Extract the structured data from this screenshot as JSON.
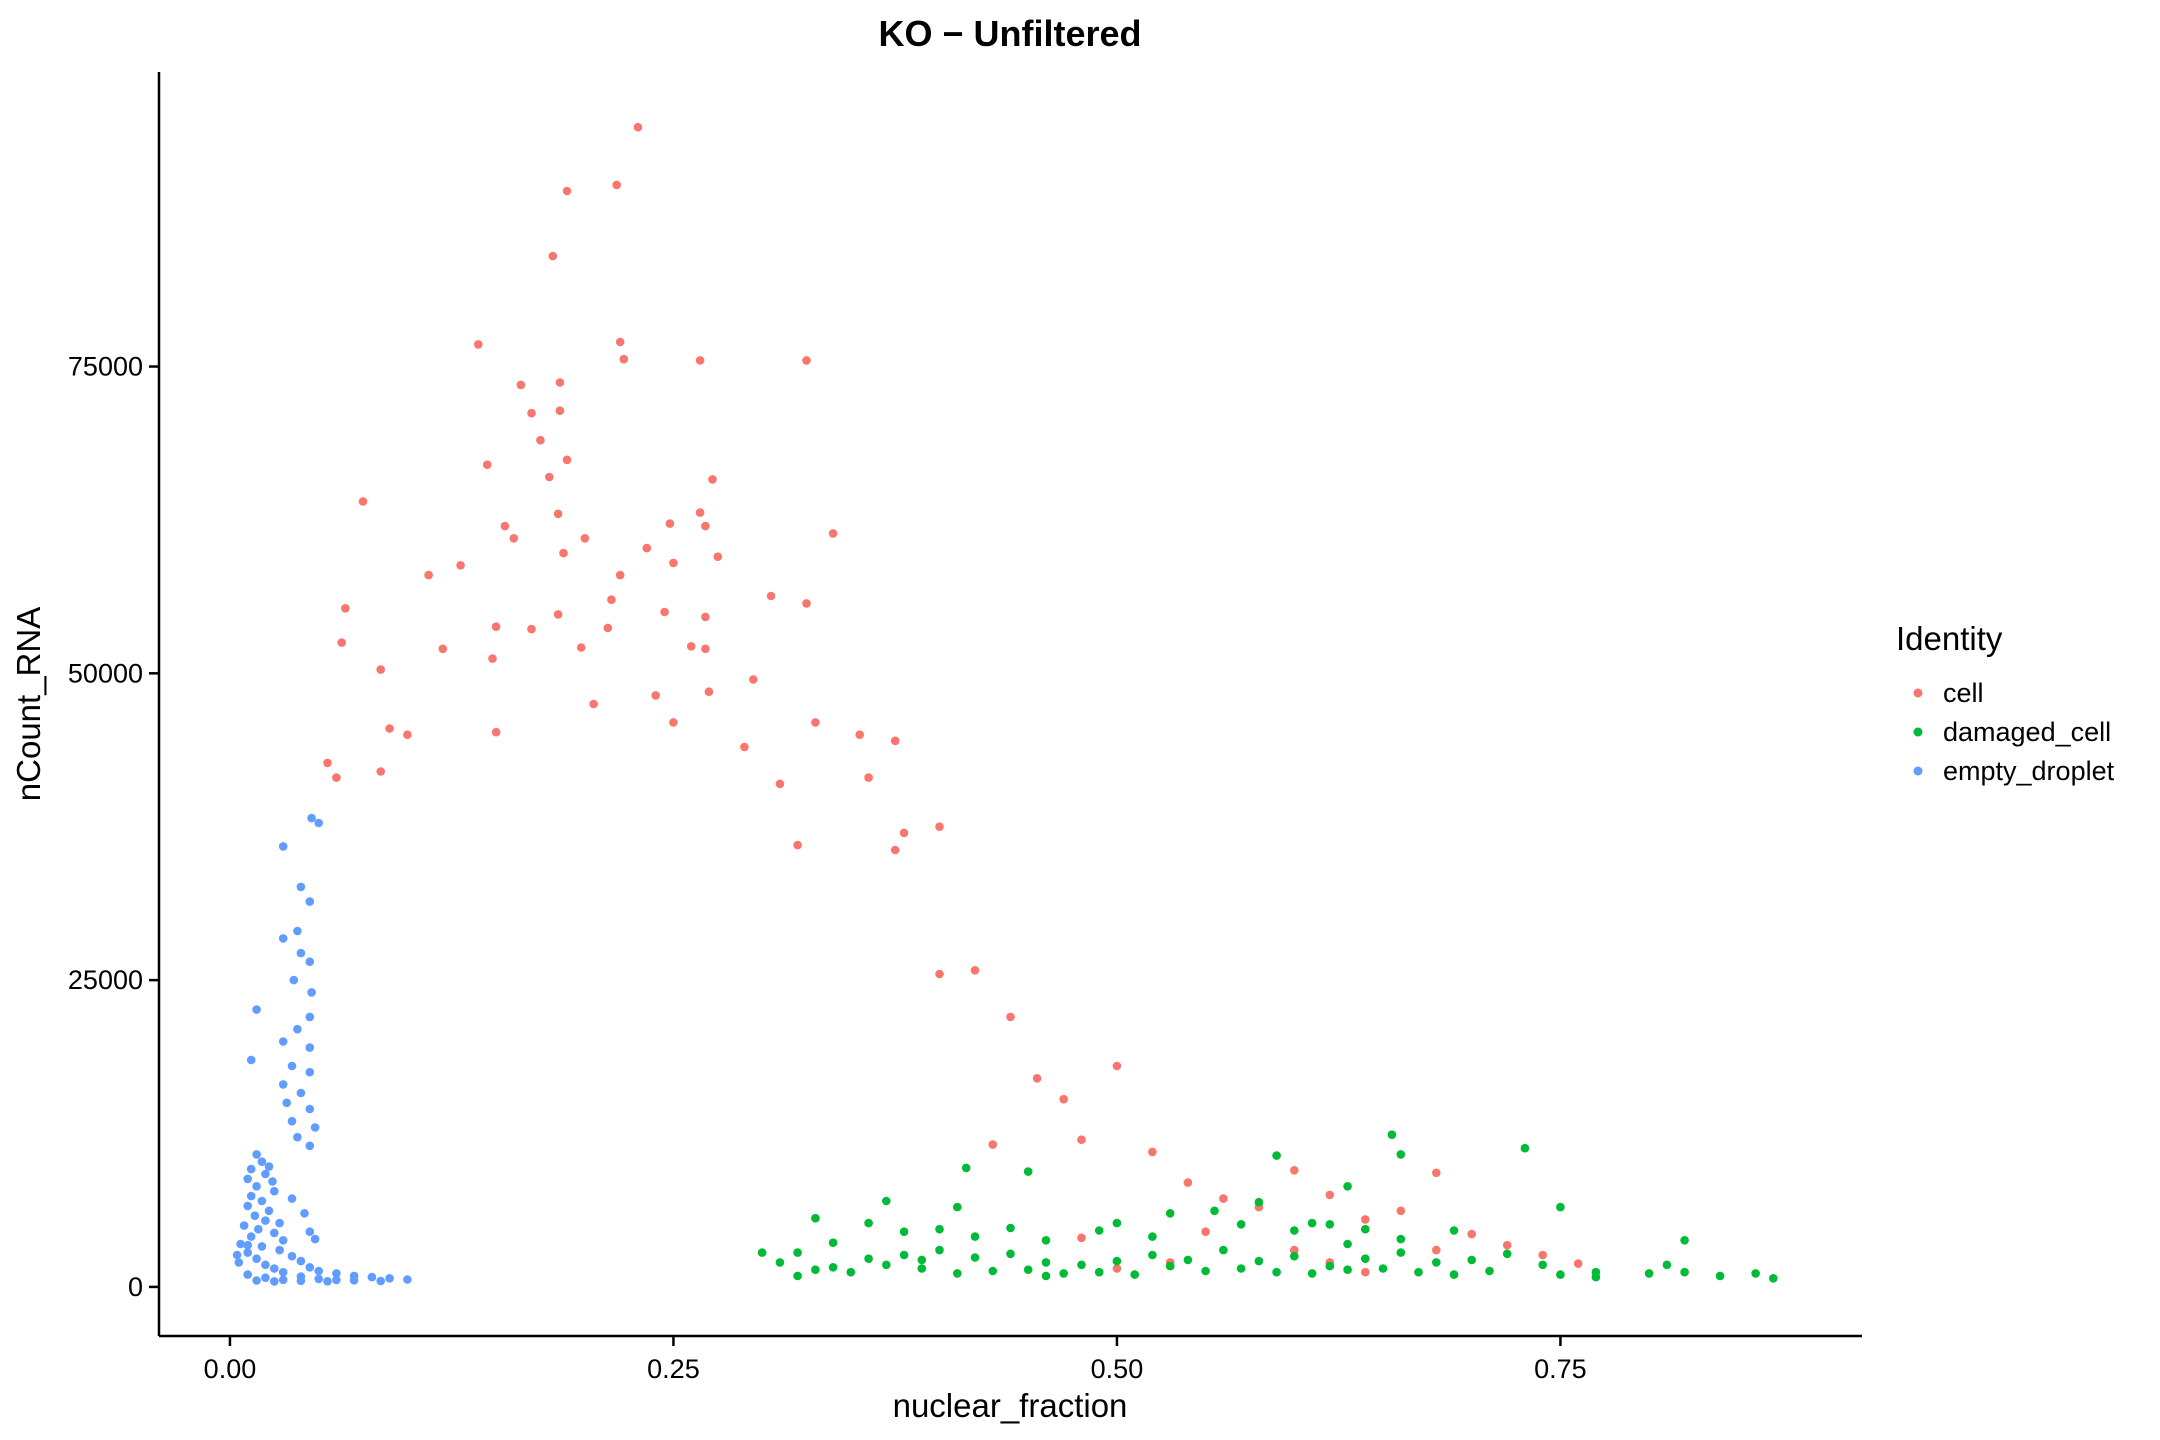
{
  "chart_data": {
    "type": "scatter",
    "title": "KO − Unfiltered",
    "xlabel": "nuclear_fraction",
    "ylabel": "nCount_RNA",
    "xlim": [
      -0.04,
      0.92
    ],
    "ylim": [
      -4000,
      99000
    ],
    "x_ticks": [
      0.0,
      0.25,
      0.5,
      0.75
    ],
    "x_tick_labels": [
      "0.00",
      "0.25",
      "0.50",
      "0.75"
    ],
    "y_ticks": [
      0,
      25000,
      50000,
      75000
    ],
    "y_tick_labels": [
      "0",
      "25000",
      "50000",
      "75000"
    ],
    "grid": false,
    "legend": {
      "title": "Identity",
      "placement": "right"
    },
    "series": [
      {
        "name": "cell",
        "color": "#F8766D",
        "points": [
          [
            0.23,
            94500
          ],
          [
            0.218,
            89800
          ],
          [
            0.19,
            89300
          ],
          [
            0.182,
            84000
          ],
          [
            0.14,
            76800
          ],
          [
            0.22,
            77000
          ],
          [
            0.222,
            75600
          ],
          [
            0.265,
            75500
          ],
          [
            0.325,
            75500
          ],
          [
            0.164,
            73500
          ],
          [
            0.186,
            73700
          ],
          [
            0.17,
            71200
          ],
          [
            0.186,
            71400
          ],
          [
            0.175,
            69000
          ],
          [
            0.19,
            67400
          ],
          [
            0.145,
            67000
          ],
          [
            0.18,
            66000
          ],
          [
            0.272,
            65800
          ],
          [
            0.075,
            64000
          ],
          [
            0.185,
            63000
          ],
          [
            0.265,
            63100
          ],
          [
            0.248,
            62200
          ],
          [
            0.34,
            61400
          ],
          [
            0.155,
            62000
          ],
          [
            0.16,
            61000
          ],
          [
            0.268,
            62000
          ],
          [
            0.2,
            61000
          ],
          [
            0.188,
            59800
          ],
          [
            0.235,
            60200
          ],
          [
            0.275,
            59500
          ],
          [
            0.13,
            58800
          ],
          [
            0.112,
            58000
          ],
          [
            0.25,
            59000
          ],
          [
            0.22,
            58000
          ],
          [
            0.305,
            56300
          ],
          [
            0.215,
            56000
          ],
          [
            0.065,
            55300
          ],
          [
            0.325,
            55700
          ],
          [
            0.245,
            55000
          ],
          [
            0.185,
            54800
          ],
          [
            0.15,
            53800
          ],
          [
            0.17,
            53600
          ],
          [
            0.268,
            54600
          ],
          [
            0.12,
            52000
          ],
          [
            0.063,
            52500
          ],
          [
            0.26,
            52200
          ],
          [
            0.268,
            52000
          ],
          [
            0.085,
            50300
          ],
          [
            0.295,
            49500
          ],
          [
            0.148,
            51200
          ],
          [
            0.198,
            52100
          ],
          [
            0.213,
            53700
          ],
          [
            0.27,
            48500
          ],
          [
            0.24,
            48200
          ],
          [
            0.205,
            47500
          ],
          [
            0.355,
            45000
          ],
          [
            0.375,
            44500
          ],
          [
            0.15,
            45200
          ],
          [
            0.09,
            45500
          ],
          [
            0.1,
            45000
          ],
          [
            0.25,
            46000
          ],
          [
            0.33,
            46000
          ],
          [
            0.29,
            44000
          ],
          [
            0.055,
            42700
          ],
          [
            0.085,
            42000
          ],
          [
            0.31,
            41000
          ],
          [
            0.36,
            41500
          ],
          [
            0.4,
            37500
          ],
          [
            0.38,
            37000
          ],
          [
            0.375,
            35600
          ],
          [
            0.32,
            36000
          ],
          [
            0.06,
            41500
          ],
          [
            0.42,
            25800
          ],
          [
            0.4,
            25500
          ],
          [
            0.44,
            22000
          ],
          [
            0.5,
            18000
          ],
          [
            0.455,
            17000
          ],
          [
            0.47,
            15300
          ],
          [
            0.43,
            11600
          ],
          [
            0.48,
            12000
          ],
          [
            0.52,
            11000
          ],
          [
            0.6,
            9500
          ],
          [
            0.54,
            8500
          ],
          [
            0.62,
            7500
          ],
          [
            0.56,
            7200
          ],
          [
            0.68,
            9300
          ],
          [
            0.58,
            6500
          ],
          [
            0.66,
            6200
          ],
          [
            0.64,
            5500
          ],
          [
            0.7,
            4300
          ],
          [
            0.72,
            3400
          ],
          [
            0.74,
            2600
          ],
          [
            0.76,
            1900
          ],
          [
            0.68,
            3000
          ],
          [
            0.62,
            2000
          ],
          [
            0.6,
            3000
          ],
          [
            0.53,
            2000
          ],
          [
            0.5,
            1500
          ],
          [
            0.48,
            4000
          ],
          [
            0.55,
            4500
          ],
          [
            0.64,
            1200
          ]
        ]
      },
      {
        "name": "damaged_cell",
        "color": "#00BA38",
        "points": [
          [
            0.655,
            12400
          ],
          [
            0.73,
            11300
          ],
          [
            0.66,
            10800
          ],
          [
            0.59,
            10700
          ],
          [
            0.415,
            9700
          ],
          [
            0.45,
            9400
          ],
          [
            0.63,
            8200
          ],
          [
            0.75,
            6500
          ],
          [
            0.555,
            6200
          ],
          [
            0.32,
            2800
          ],
          [
            0.34,
            3600
          ],
          [
            0.36,
            2300
          ],
          [
            0.38,
            2600
          ],
          [
            0.4,
            3000
          ],
          [
            0.42,
            2400
          ],
          [
            0.44,
            2700
          ],
          [
            0.46,
            2000
          ],
          [
            0.48,
            1800
          ],
          [
            0.5,
            2100
          ],
          [
            0.52,
            2600
          ],
          [
            0.54,
            2200
          ],
          [
            0.56,
            3000
          ],
          [
            0.58,
            2100
          ],
          [
            0.6,
            2500
          ],
          [
            0.62,
            1700
          ],
          [
            0.64,
            2300
          ],
          [
            0.66,
            2800
          ],
          [
            0.68,
            2000
          ],
          [
            0.7,
            2200
          ],
          [
            0.33,
            1400
          ],
          [
            0.35,
            1200
          ],
          [
            0.37,
            1800
          ],
          [
            0.39,
            1500
          ],
          [
            0.41,
            1100
          ],
          [
            0.43,
            1300
          ],
          [
            0.45,
            1400
          ],
          [
            0.47,
            1100
          ],
          [
            0.49,
            1200
          ],
          [
            0.51,
            1000
          ],
          [
            0.53,
            1700
          ],
          [
            0.55,
            1300
          ],
          [
            0.57,
            1500
          ],
          [
            0.59,
            1200
          ],
          [
            0.61,
            1100
          ],
          [
            0.63,
            1400
          ],
          [
            0.65,
            1500
          ],
          [
            0.67,
            1200
          ],
          [
            0.69,
            1000
          ],
          [
            0.71,
            1300
          ],
          [
            0.36,
            5200
          ],
          [
            0.38,
            4500
          ],
          [
            0.4,
            4700
          ],
          [
            0.42,
            4100
          ],
          [
            0.44,
            4800
          ],
          [
            0.46,
            3800
          ],
          [
            0.49,
            4600
          ],
          [
            0.52,
            4100
          ],
          [
            0.57,
            5100
          ],
          [
            0.6,
            4600
          ],
          [
            0.62,
            5100
          ],
          [
            0.64,
            4700
          ],
          [
            0.69,
            4600
          ],
          [
            0.75,
            1000
          ],
          [
            0.77,
            800
          ],
          [
            0.8,
            1100
          ],
          [
            0.82,
            1200
          ],
          [
            0.84,
            900
          ],
          [
            0.86,
            1100
          ],
          [
            0.87,
            700
          ],
          [
            0.33,
            5600
          ],
          [
            0.37,
            7000
          ],
          [
            0.41,
            6500
          ],
          [
            0.5,
            5200
          ],
          [
            0.53,
            6000
          ],
          [
            0.58,
            6900
          ],
          [
            0.61,
            5200
          ],
          [
            0.63,
            3500
          ],
          [
            0.66,
            3900
          ],
          [
            0.72,
            2700
          ],
          [
            0.74,
            1800
          ],
          [
            0.77,
            1200
          ],
          [
            0.81,
            1800
          ],
          [
            0.82,
            3800
          ],
          [
            0.46,
            900
          ],
          [
            0.34,
            1600
          ],
          [
            0.3,
            2800
          ],
          [
            0.31,
            2000
          ],
          [
            0.32,
            900
          ],
          [
            0.39,
            2200
          ]
        ]
      },
      {
        "name": "empty_droplet",
        "color": "#619CFF",
        "points": [
          [
            0.046,
            38200
          ],
          [
            0.05,
            37800
          ],
          [
            0.03,
            35900
          ],
          [
            0.04,
            32600
          ],
          [
            0.045,
            31400
          ],
          [
            0.038,
            29000
          ],
          [
            0.03,
            28400
          ],
          [
            0.04,
            27200
          ],
          [
            0.045,
            26500
          ],
          [
            0.036,
            25000
          ],
          [
            0.046,
            24000
          ],
          [
            0.015,
            22600
          ],
          [
            0.045,
            22000
          ],
          [
            0.038,
            21000
          ],
          [
            0.03,
            20000
          ],
          [
            0.045,
            19500
          ],
          [
            0.012,
            18500
          ],
          [
            0.035,
            18000
          ],
          [
            0.045,
            17500
          ],
          [
            0.03,
            16500
          ],
          [
            0.04,
            15800
          ],
          [
            0.032,
            15000
          ],
          [
            0.045,
            14500
          ],
          [
            0.035,
            13500
          ],
          [
            0.048,
            13000
          ],
          [
            0.038,
            12200
          ],
          [
            0.045,
            11500
          ],
          [
            0.015,
            10800
          ],
          [
            0.018,
            10200
          ],
          [
            0.012,
            9600
          ],
          [
            0.02,
            9200
          ],
          [
            0.01,
            8800
          ],
          [
            0.015,
            8200
          ],
          [
            0.025,
            7800
          ],
          [
            0.012,
            7400
          ],
          [
            0.018,
            7000
          ],
          [
            0.01,
            6600
          ],
          [
            0.022,
            6200
          ],
          [
            0.014,
            5800
          ],
          [
            0.02,
            5400
          ],
          [
            0.008,
            5000
          ],
          [
            0.016,
            4700
          ],
          [
            0.025,
            4400
          ],
          [
            0.012,
            4100
          ],
          [
            0.03,
            3800
          ],
          [
            0.006,
            3500
          ],
          [
            0.018,
            3300
          ],
          [
            0.028,
            3000
          ],
          [
            0.01,
            2800
          ],
          [
            0.035,
            2500
          ],
          [
            0.015,
            2300
          ],
          [
            0.04,
            2100
          ],
          [
            0.005,
            2000
          ],
          [
            0.02,
            1800
          ],
          [
            0.045,
            1600
          ],
          [
            0.025,
            1500
          ],
          [
            0.05,
            1300
          ],
          [
            0.03,
            1200
          ],
          [
            0.06,
            1100
          ],
          [
            0.01,
            1000
          ],
          [
            0.07,
            900
          ],
          [
            0.04,
            850
          ],
          [
            0.08,
            800
          ],
          [
            0.02,
            750
          ],
          [
            0.09,
            700
          ],
          [
            0.05,
            650
          ],
          [
            0.1,
            600
          ],
          [
            0.03,
            580
          ],
          [
            0.06,
            560
          ],
          [
            0.07,
            540
          ],
          [
            0.015,
            520
          ],
          [
            0.04,
            500
          ],
          [
            0.085,
            480
          ],
          [
            0.055,
            460
          ],
          [
            0.025,
            450
          ],
          [
            0.035,
            7200
          ],
          [
            0.042,
            6000
          ],
          [
            0.028,
            5200
          ],
          [
            0.045,
            4500
          ],
          [
            0.048,
            3900
          ],
          [
            0.022,
            9800
          ],
          [
            0.024,
            8600
          ],
          [
            0.01,
            3400
          ],
          [
            0.004,
            2600
          ]
        ]
      }
    ]
  }
}
